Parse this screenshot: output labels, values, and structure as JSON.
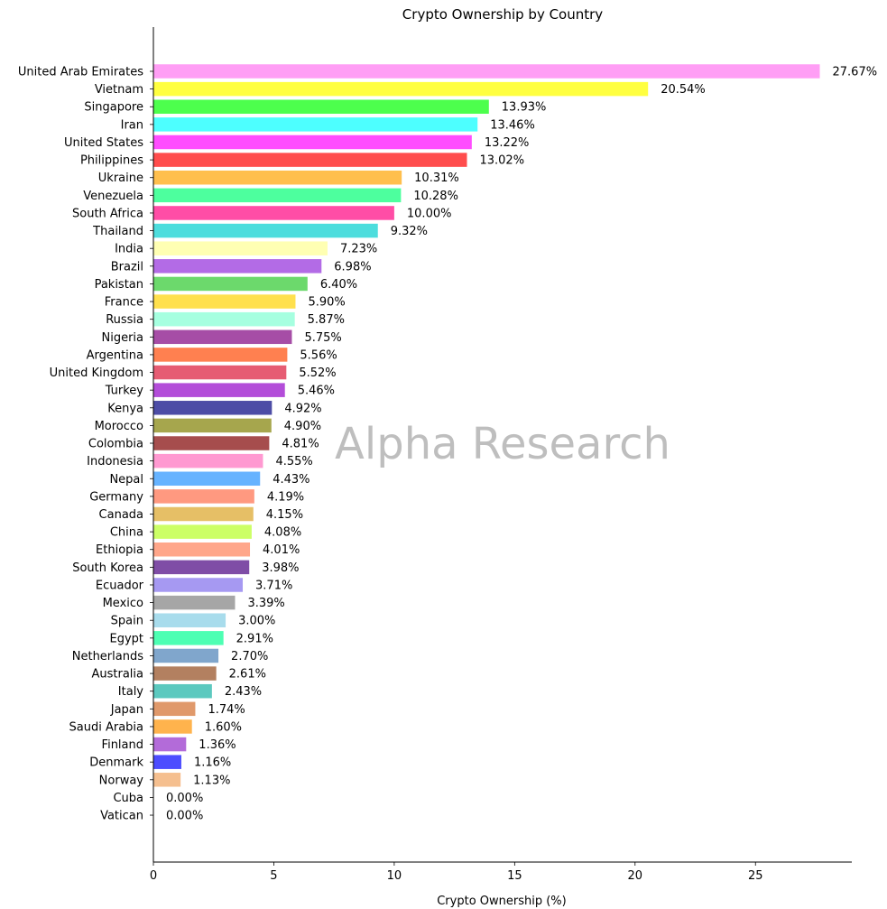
{
  "chart_data": {
    "type": "bar",
    "orientation": "horizontal",
    "title": "Crypto Ownership by Country",
    "xlabel": "Crypto Ownership (%)",
    "ylabel": "",
    "xlim": [
      0,
      29
    ],
    "xticks": [
      0,
      5,
      10,
      15,
      20,
      25
    ],
    "grid": false,
    "value_suffix": "%",
    "watermark": "Alpha Research",
    "categories": [
      "United Arab Emirates",
      "Vietnam",
      "Singapore",
      "Iran",
      "United States",
      "Philippines",
      "Ukraine",
      "Venezuela",
      "South Africa",
      "Thailand",
      "India",
      "Brazil",
      "Pakistan",
      "France",
      "Russia",
      "Nigeria",
      "Argentina",
      "United Kingdom",
      "Turkey",
      "Kenya",
      "Morocco",
      "Colombia",
      "Indonesia",
      "Nepal",
      "Germany",
      "Canada",
      "China",
      "Ethiopia",
      "South Korea",
      "Ecuador",
      "Mexico",
      "Spain",
      "Egypt",
      "Netherlands",
      "Australia",
      "Italy",
      "Japan",
      "Saudi Arabia",
      "Finland",
      "Denmark",
      "Norway",
      "Cuba",
      "Vatican"
    ],
    "values": [
      27.67,
      20.54,
      13.93,
      13.46,
      13.22,
      13.02,
      10.31,
      10.28,
      10.0,
      9.32,
      7.23,
      6.98,
      6.4,
      5.9,
      5.87,
      5.75,
      5.56,
      5.52,
      5.46,
      4.92,
      4.9,
      4.81,
      4.55,
      4.43,
      4.19,
      4.15,
      4.08,
      4.01,
      3.98,
      3.71,
      3.39,
      3.0,
      2.91,
      2.7,
      2.61,
      2.43,
      1.74,
      1.6,
      1.36,
      1.16,
      1.13,
      0.0,
      0.0
    ],
    "colors": [
      "#ff9ef5",
      "#ffff40",
      "#4dff4d",
      "#4dffff",
      "#ff4dff",
      "#ff4d4d",
      "#ffbf4d",
      "#4dff9e",
      "#ff4da6",
      "#4ddddd",
      "#ffffb3",
      "#b36be6",
      "#6cd96c",
      "#ffe04d",
      "#a6ffe0",
      "#a64da6",
      "#ff8050",
      "#e65c73",
      "#b34dd9",
      "#4d4da6",
      "#a6a64d",
      "#a64d4d",
      "#ff99d1",
      "#66b3ff",
      "#ff9980",
      "#e6bf66",
      "#ccff66",
      "#ffa68a",
      "#7f4da6",
      "#a699f2",
      "#a6a6a6",
      "#a8dcec",
      "#4dffb3",
      "#80a6cc",
      "#b38060",
      "#5cc9bf",
      "#e0996b",
      "#ffb34d",
      "#b36bd9",
      "#4d4dff",
      "#f5bf8f",
      "#c0c0c0",
      "#c0c0c0"
    ]
  }
}
